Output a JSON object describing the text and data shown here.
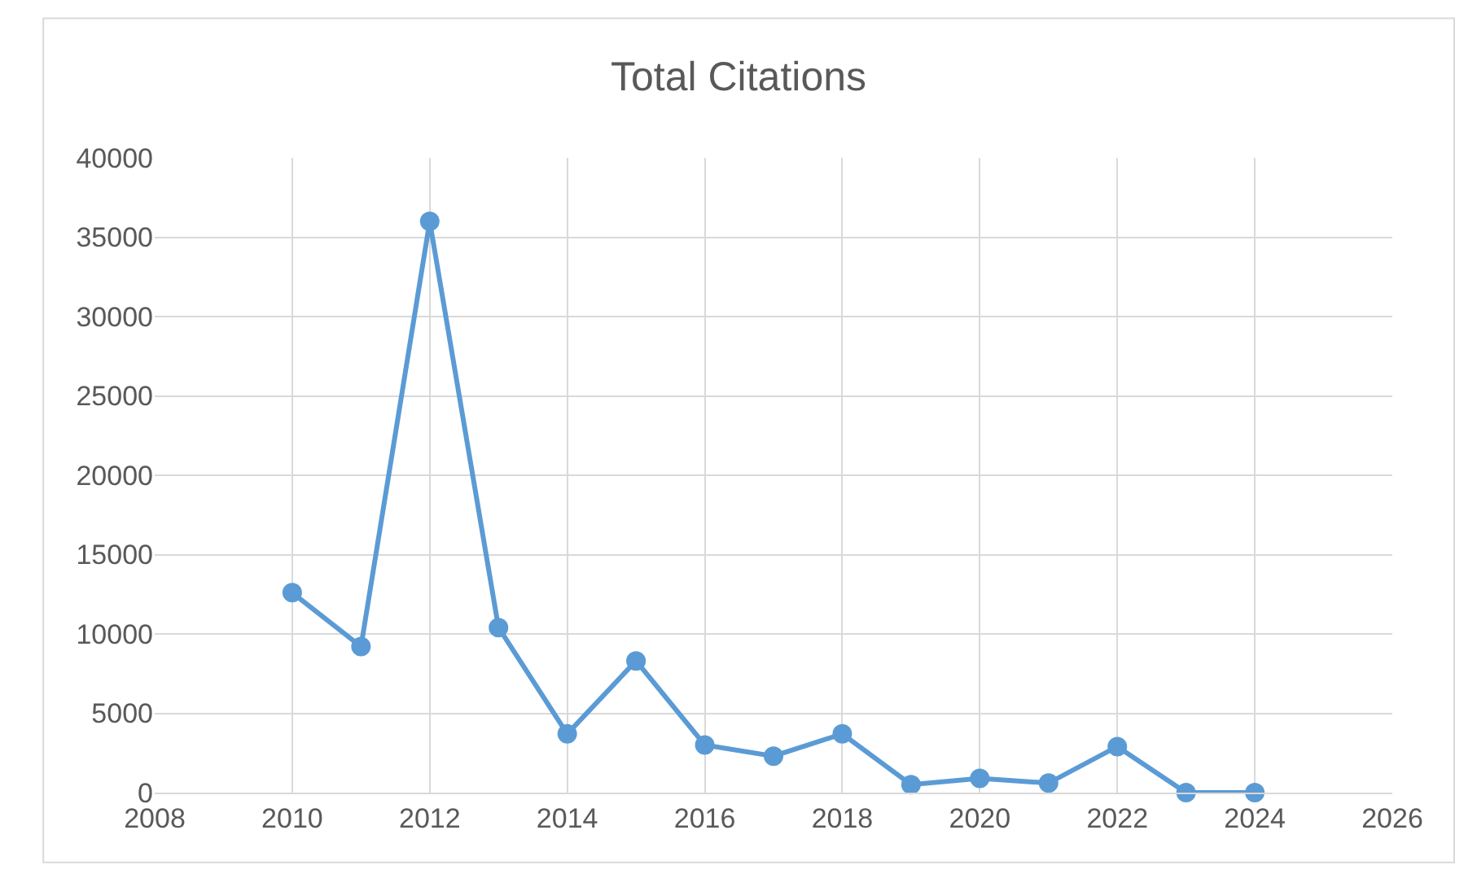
{
  "chart_data": {
    "type": "line",
    "title": "Total Citations",
    "x": [
      2010,
      2011,
      2012,
      2013,
      2014,
      2015,
      2016,
      2017,
      2018,
      2019,
      2020,
      2021,
      2022,
      2023,
      2024
    ],
    "series": [
      {
        "color": "#5b9bd5",
        "values": [
          12600,
          9200,
          36000,
          10400,
          3700,
          8300,
          3000,
          2300,
          3700,
          500,
          900,
          600,
          2900,
          0,
          0
        ]
      }
    ],
    "xlim": [
      2008,
      2026
    ],
    "xticks": [
      2008,
      2010,
      2012,
      2014,
      2016,
      2018,
      2020,
      2022,
      2024,
      2026
    ],
    "ylim": [
      0,
      40000
    ],
    "yticks": [
      0,
      5000,
      10000,
      15000,
      20000,
      25000,
      30000,
      35000,
      40000
    ],
    "grid": true,
    "marker": "circle",
    "line_style": "solid",
    "legend": false
  }
}
